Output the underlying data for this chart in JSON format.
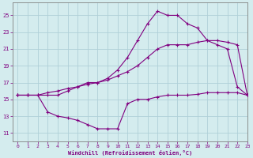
{
  "xlabel": "Windchill (Refroidissement éolien,°C)",
  "xlim": [
    -0.5,
    23
  ],
  "ylim": [
    10,
    26.5
  ],
  "xticks": [
    0,
    1,
    2,
    3,
    4,
    5,
    6,
    7,
    8,
    9,
    10,
    11,
    12,
    13,
    14,
    15,
    16,
    17,
    18,
    19,
    20,
    21,
    22,
    23
  ],
  "yticks": [
    11,
    13,
    15,
    17,
    19,
    21,
    23,
    25
  ],
  "bg_color": "#d4ecee",
  "line_color": "#800080",
  "grid_color": "#b0d0d8",
  "line1_x": [
    0,
    1,
    2,
    3,
    4,
    5,
    6,
    7,
    8,
    9,
    10,
    11,
    12,
    13,
    14,
    15,
    16,
    17,
    18,
    19,
    20,
    21,
    22,
    23
  ],
  "line1_y": [
    15.5,
    15.5,
    15.5,
    15.5,
    15.5,
    16.0,
    16.5,
    17.0,
    17.0,
    17.5,
    18.5,
    20.0,
    22.0,
    24.0,
    25.5,
    25.0,
    25.0,
    24.0,
    23.5,
    22.0,
    21.5,
    21.0,
    16.5,
    15.5
  ],
  "line2_x": [
    0,
    1,
    2,
    3,
    4,
    5,
    6,
    7,
    8,
    9,
    10,
    11,
    12,
    13,
    14,
    15,
    16,
    17,
    18,
    19,
    20,
    21,
    22,
    23
  ],
  "line2_y": [
    15.5,
    15.5,
    15.5,
    15.8,
    16.0,
    16.3,
    16.5,
    16.8,
    17.0,
    17.3,
    17.8,
    18.3,
    19.0,
    20.0,
    21.0,
    21.5,
    21.5,
    21.5,
    21.8,
    22.0,
    22.0,
    21.8,
    21.5,
    15.5
  ],
  "line3_x": [
    0,
    1,
    2,
    3,
    4,
    5,
    6,
    7,
    8,
    9,
    10,
    11,
    12,
    13,
    14,
    15,
    16,
    17,
    18,
    19,
    20,
    21,
    22,
    23
  ],
  "line3_y": [
    15.5,
    15.5,
    15.5,
    13.5,
    13.0,
    12.8,
    12.5,
    12.0,
    11.5,
    11.5,
    11.5,
    14.5,
    15.0,
    15.0,
    15.3,
    15.5,
    15.5,
    15.5,
    15.6,
    15.8,
    15.8,
    15.8,
    15.8,
    15.5
  ]
}
